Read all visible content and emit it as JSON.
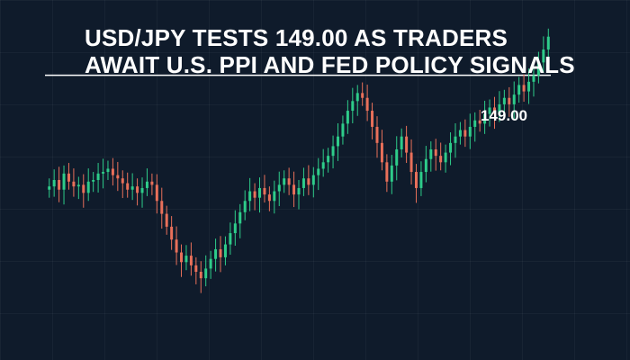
{
  "headline": {
    "line1": "USD/JPY TESTS 149.00 AS TRADERS",
    "line2": "AWAIT U.S. PPI AND FED POLICY SIGNALS"
  },
  "colors": {
    "background": "#0f1b2b",
    "up": "#2ecc8a",
    "down": "#e9705a",
    "level_line": "#ffffff"
  },
  "chart_data": {
    "type": "candlestick",
    "title": "USD/JPY TESTS 149.00 AS TRADERS AWAIT U.S. PPI AND FED POLICY SIGNALS",
    "level_label": "149.00",
    "level": 149.0,
    "ylim": [
      141.0,
      150.5
    ],
    "close": [
      145.55,
      145.75,
      145.45,
      145.95,
      145.7,
      145.55,
      145.6,
      145.35,
      145.7,
      145.75,
      145.95,
      146.0,
      146.1,
      145.9,
      145.8,
      145.65,
      145.45,
      145.55,
      145.35,
      145.5,
      145.7,
      145.6,
      145.1,
      144.7,
      144.3,
      143.9,
      143.5,
      143.2,
      143.4,
      143.1,
      142.9,
      142.7,
      143.0,
      143.3,
      143.6,
      143.35,
      143.75,
      144.1,
      144.4,
      144.75,
      145.1,
      145.4,
      145.2,
      145.5,
      145.3,
      145.1,
      145.4,
      145.6,
      145.8,
      145.6,
      145.3,
      145.5,
      145.8,
      145.6,
      145.9,
      146.1,
      146.3,
      146.5,
      146.8,
      147.1,
      147.5,
      147.9,
      148.2,
      148.45,
      148.3,
      147.9,
      147.4,
      146.9,
      146.3,
      145.7,
      146.2,
      146.7,
      147.1,
      146.6,
      146.0,
      145.5,
      146.0,
      146.4,
      146.7,
      146.5,
      146.3,
      146.6,
      146.9,
      147.1,
      147.3,
      147.1,
      147.4,
      147.6,
      147.5,
      147.8,
      148.0,
      147.8,
      148.1,
      148.3,
      148.1,
      148.4,
      148.7,
      148.5,
      148.8,
      149.0,
      149.4,
      149.8,
      150.2
    ],
    "open_close_note": "",
    "xlabel": "",
    "ylabel": ""
  }
}
